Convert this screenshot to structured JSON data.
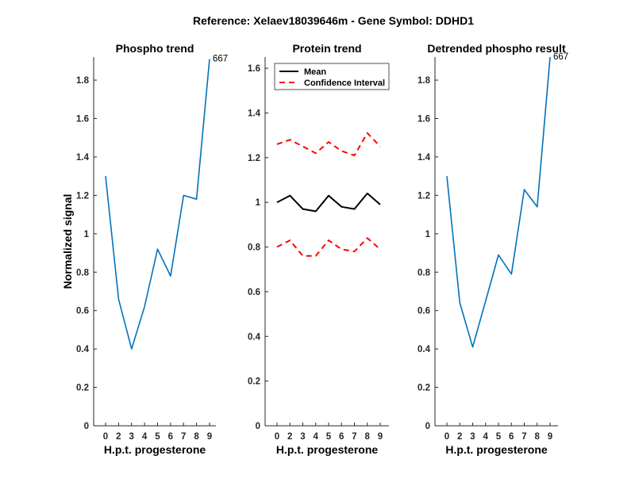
{
  "figure_title": "Reference:  Xelaev18039646m - Gene Symbol:  DDHD1",
  "colors": {
    "phospho": "#0072BD",
    "mean": "#000000",
    "ci": "#FF0000",
    "axis": "#262626"
  },
  "chart_data": [
    {
      "type": "line",
      "title": "Phospho trend",
      "xlabel": "H.p.t. progesterone",
      "ylabel": "Normalized signal",
      "categories": [
        "0",
        "2",
        "3",
        "4",
        "5",
        "6",
        "7",
        "8",
        "9"
      ],
      "ylim": [
        0,
        1.92
      ],
      "yticks": [
        "0",
        "0.2",
        "0.4",
        "0.6",
        "0.8",
        "1",
        "1.2",
        "1.4",
        "1.6",
        "1.8"
      ],
      "series": [
        {
          "values": [
            1.3,
            0.66,
            0.4,
            0.62,
            0.92,
            0.78,
            1.2,
            1.18,
            1.91
          ]
        }
      ],
      "annotation": "667",
      "grid": false
    },
    {
      "type": "line",
      "title": "Protein trend",
      "xlabel": "H.p.t. progesterone",
      "categories": [
        "0",
        "2",
        "3",
        "4",
        "5",
        "6",
        "7",
        "8",
        "9"
      ],
      "ylim": [
        0,
        1.65
      ],
      "yticks": [
        "0",
        "0.2",
        "0.4",
        "0.6",
        "0.8",
        "1",
        "1.2",
        "1.4",
        "1.6"
      ],
      "series": [
        {
          "name": "Mean",
          "values": [
            1.0,
            1.03,
            0.97,
            0.96,
            1.03,
            0.98,
            0.97,
            1.04,
            0.99
          ]
        },
        {
          "name": "Confidence Interval",
          "values": [
            1.26,
            1.28,
            1.25,
            1.22,
            1.27,
            1.23,
            1.21,
            1.31,
            1.25
          ]
        },
        {
          "values": [
            0.8,
            0.83,
            0.76,
            0.76,
            0.83,
            0.79,
            0.78,
            0.84,
            0.79
          ]
        }
      ],
      "legend": {
        "position": "top-left",
        "entries": [
          "Mean",
          "Confidence Interval"
        ]
      },
      "grid": false
    },
    {
      "type": "line",
      "title": "Detrended phospho result",
      "xlabel": "H.p.t. progesterone",
      "categories": [
        "0",
        "2",
        "3",
        "4",
        "5",
        "6",
        "7",
        "8",
        "9"
      ],
      "ylim": [
        0,
        1.92
      ],
      "yticks": [
        "0",
        "0.2",
        "0.4",
        "0.6",
        "0.8",
        "1",
        "1.2",
        "1.4",
        "1.6",
        "1.8"
      ],
      "series": [
        {
          "values": [
            1.3,
            0.64,
            0.41,
            0.65,
            0.89,
            0.79,
            1.23,
            1.14,
            1.92
          ]
        }
      ],
      "annotation": "667",
      "grid": false
    }
  ]
}
